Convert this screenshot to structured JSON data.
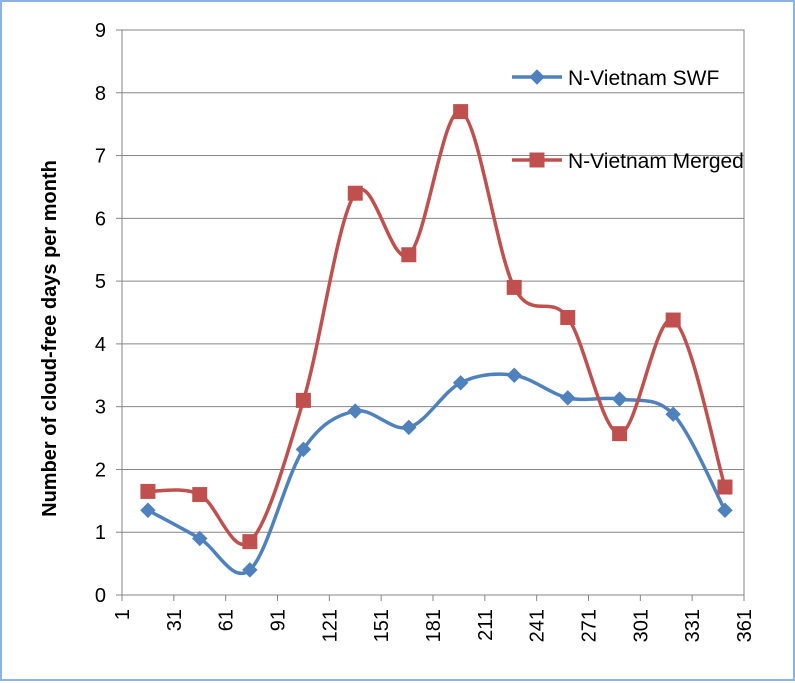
{
  "chart_data": {
    "type": "line",
    "title": "",
    "xlabel": "",
    "ylabel": "Number of cloud-free days per month",
    "xlim": [
      1,
      361
    ],
    "ylim": [
      0,
      9
    ],
    "x_ticks": [
      1,
      31,
      61,
      91,
      121,
      151,
      181,
      211,
      241,
      271,
      301,
      331,
      361
    ],
    "y_ticks": [
      0,
      1,
      2,
      3,
      4,
      5,
      6,
      7,
      8,
      9
    ],
    "grid": "horizontal",
    "legend_position": "top-right",
    "x": [
      16,
      46,
      75,
      106,
      136,
      167,
      197,
      228,
      259,
      289,
      320,
      350
    ],
    "series": [
      {
        "name": "N-Vietnam SWF",
        "color": "#4f81bd",
        "marker": "diamond",
        "values": [
          1.35,
          0.9,
          0.4,
          2.32,
          2.93,
          2.67,
          3.38,
          3.5,
          3.14,
          3.12,
          2.88,
          1.35
        ]
      },
      {
        "name": "N-Vietnam Merged",
        "color": "#c0504d",
        "marker": "square",
        "values": [
          1.65,
          1.6,
          0.85,
          3.1,
          6.4,
          5.42,
          7.7,
          4.9,
          4.42,
          2.57,
          4.38,
          1.72
        ]
      }
    ]
  }
}
